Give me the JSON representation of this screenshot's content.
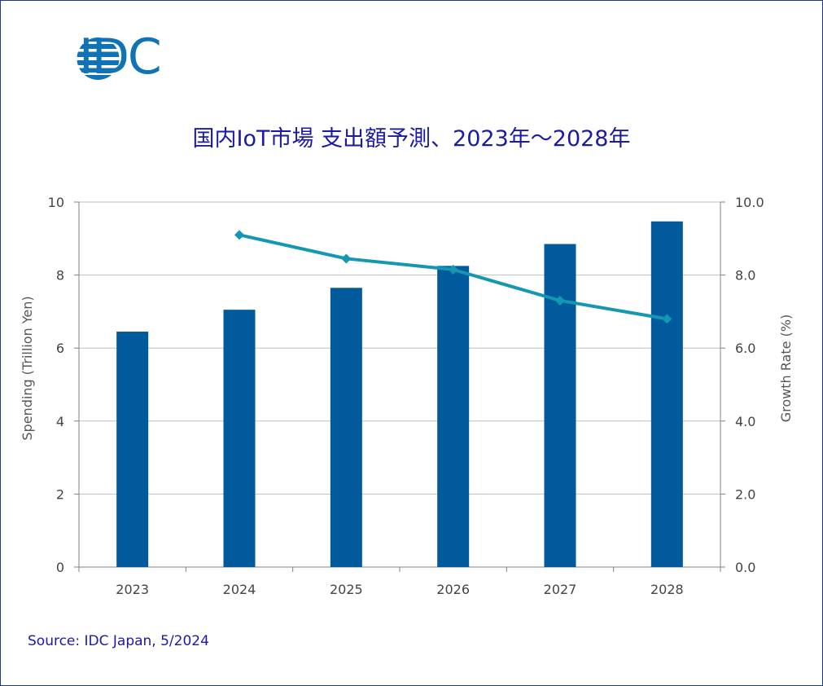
{
  "logo": {
    "text": "IDC",
    "color": "#0f73b6"
  },
  "title": "国内IoT市場 支出額予測、2023年～2028年",
  "source": "Source: IDC Japan, 5/2024",
  "colors": {
    "bar": "#005a9c",
    "line": "#1397b2",
    "grid": "#c0c0c0",
    "axis": "#808080"
  },
  "chart_data": {
    "type": "bar+line",
    "categories": [
      "2023",
      "2024",
      "2025",
      "2026",
      "2027",
      "2028"
    ],
    "series": [
      {
        "name": "Spending (Trillion Yen)",
        "type": "bar",
        "axis": "left",
        "values": [
          6.45,
          7.05,
          7.65,
          8.25,
          8.85,
          9.47
        ]
      },
      {
        "name": "Growth Rate (%)",
        "type": "line",
        "axis": "right",
        "values": [
          null,
          9.1,
          8.45,
          8.15,
          7.3,
          6.8
        ]
      }
    ],
    "ylabel": "Spending (Trillion Yen)",
    "y2label": "Growth Rate (%)",
    "ylim": [
      0,
      10
    ],
    "y2lim": [
      0,
      10
    ],
    "yticks": [
      "0",
      "2",
      "4",
      "6",
      "8",
      "10"
    ],
    "y2ticks": [
      "0.0",
      "2.0",
      "4.0",
      "6.0",
      "8.0",
      "10.0"
    ],
    "grid": true
  }
}
